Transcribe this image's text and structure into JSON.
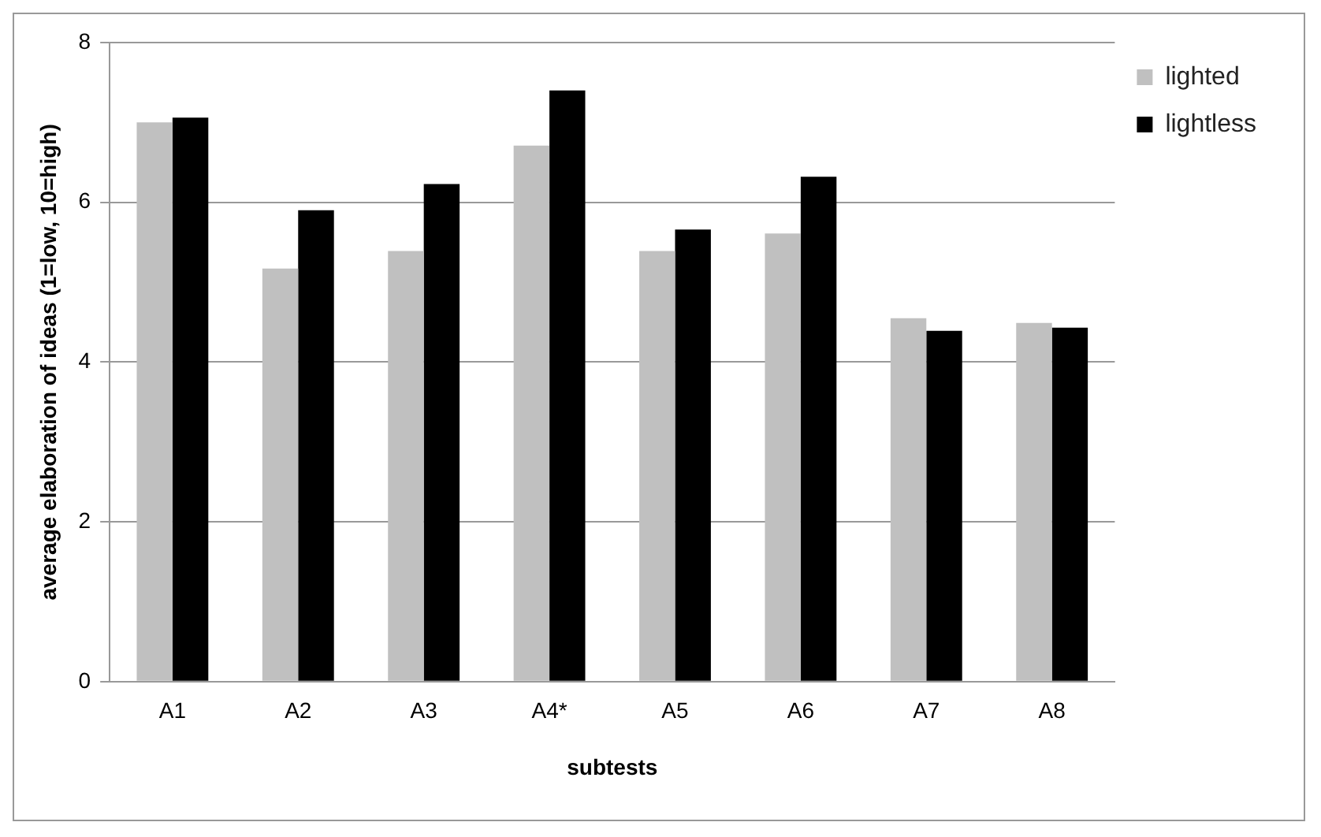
{
  "chart_data": {
    "type": "bar",
    "xlabel": "subtests",
    "ylabel": "average elaboration of ideas (1=low, 10=high)",
    "categories": [
      "A1",
      "A2",
      "A3",
      "A4*",
      "A5",
      "A6",
      "A7",
      "A8"
    ],
    "series": [
      {
        "name": "lighted",
        "color": "#c0c0c0",
        "values": [
          7.0,
          5.17,
          5.39,
          6.71,
          5.39,
          5.61,
          4.55,
          4.49
        ]
      },
      {
        "name": "lightless",
        "color": "#000000",
        "values": [
          7.06,
          5.9,
          6.23,
          7.4,
          5.66,
          6.32,
          4.39,
          4.43
        ]
      }
    ],
    "ylim": [
      0,
      8
    ],
    "yticks": [
      0,
      2,
      4,
      6,
      8
    ],
    "grid": "y",
    "legend": "top right"
  }
}
